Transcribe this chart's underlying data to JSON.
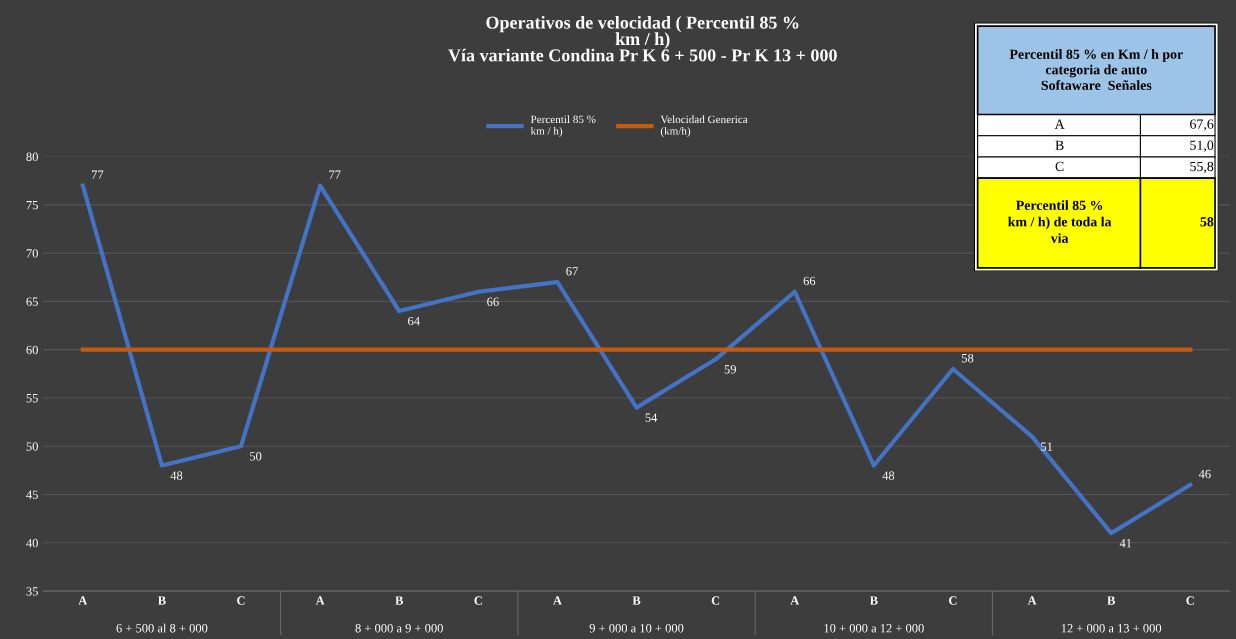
{
  "chart_data": {
    "type": "line",
    "title": "Operativos de velocidad ( Percentil 85 %\nkm / h)\nVía variante Condina Pr K 6 + 500 - Pr K 13 + 000",
    "categories": [
      "A",
      "B",
      "C",
      "A",
      "B",
      "C",
      "A",
      "B",
      "C",
      "A",
      "B",
      "C",
      "A",
      "B",
      "C"
    ],
    "series": [
      {
        "name": "Percentil 85 %\nkm / h)",
        "color": "#4472c4",
        "values": [
          77,
          48,
          50,
          77,
          64,
          66,
          67,
          54,
          59,
          66,
          48,
          58,
          51,
          41,
          46
        ],
        "value_labels": [
          "77",
          "48",
          "50",
          "77",
          "64",
          "66",
          "67",
          "54",
          "59",
          "66",
          "48",
          "58",
          "51",
          "41",
          "46"
        ]
      },
      {
        "name": "Velocidad Generica\n(km/h)",
        "color": "#c55a11",
        "values": [
          60,
          60,
          60,
          60,
          60,
          60,
          60,
          60,
          60,
          60,
          60,
          60,
          60,
          60,
          60
        ]
      }
    ],
    "ylim": [
      35,
      80
    ],
    "yticks": [
      35,
      40,
      45,
      50,
      55,
      60,
      65,
      70,
      75,
      80
    ],
    "grid": "y",
    "legend": "top",
    "marker": "none",
    "line_style": "solid",
    "annotations": [
      "6 + 500 al 8 + 000",
      "8 + 000 a 9 + 000",
      "9 + 000 a 10 + 000",
      "10 + 000 a 12 + 000",
      "12 + 000 a 13 + 000",
      "Percentil 85 % en Km / h por\ncategoria de auto\nSoftaware  Señales",
      "A",
      "67,6",
      "B",
      "51,0",
      "C",
      "55,8",
      "Percentil 85 %\nkm / h) de toda la\nvia",
      "58"
    ]
  }
}
